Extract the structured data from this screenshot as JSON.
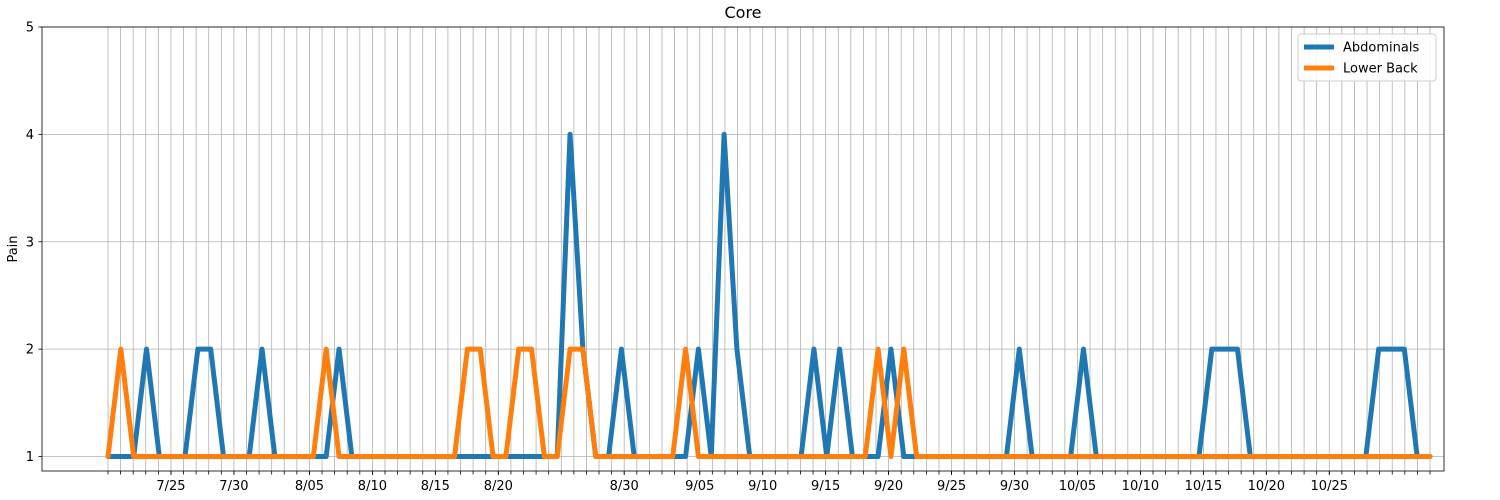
{
  "chart_data": {
    "type": "line",
    "title": "Core",
    "xlabel": "",
    "ylabel": "Pain",
    "ylim": [
      1,
      5
    ],
    "yticks": [
      1,
      2,
      3,
      4,
      5
    ],
    "x_start": "2021-07-20",
    "x_end": "2021-11-02",
    "x_labeled_ticks": [
      "7/25",
      "7/30",
      "8/05",
      "8/10",
      "8/15",
      "8/20",
      "8/30",
      "9/05",
      "9/10",
      "9/15",
      "9/20",
      "9/25",
      "9/30",
      "10/05",
      "10/10",
      "10/15",
      "10/20",
      "10/25"
    ],
    "x_labeled_tick_dates": [
      "2021-07-25",
      "2021-07-30",
      "2021-08-05",
      "2021-08-10",
      "2021-08-15",
      "2021-08-20",
      "2021-08-30",
      "2021-09-05",
      "2021-09-10",
      "2021-09-15",
      "2021-09-20",
      "2021-09-25",
      "2021-09-30",
      "2021-10-05",
      "2021-10-10",
      "2021-10-15",
      "2021-10-20",
      "2021-10-25"
    ],
    "grid": true,
    "legend_position": "top-right",
    "series": [
      {
        "name": "Abdominals",
        "color": "#1f77b4",
        "values": [
          1,
          1,
          1,
          2,
          1,
          1,
          1,
          2,
          2,
          1,
          1,
          1,
          2,
          1,
          1,
          1,
          1,
          1,
          2,
          1,
          1,
          1,
          1,
          1,
          1,
          1,
          1,
          1,
          1,
          1,
          1,
          1,
          1,
          1,
          1,
          1,
          4,
          2,
          1,
          1,
          2,
          1,
          1,
          1,
          1,
          1,
          2,
          1,
          4,
          2,
          1,
          1,
          1,
          1,
          1,
          2,
          1,
          2,
          1,
          1,
          1,
          2,
          1,
          1,
          1,
          1,
          1,
          1,
          1,
          1,
          1,
          2,
          1,
          1,
          1,
          1,
          2,
          1,
          1,
          1,
          1,
          1,
          1,
          1,
          1,
          1,
          2,
          2,
          2,
          1,
          1,
          1,
          1,
          1,
          1,
          1,
          1,
          1,
          1,
          2,
          2,
          2,
          1,
          1
        ]
      },
      {
        "name": "Lower Back",
        "color": "#ff7f0e",
        "values": [
          1,
          2,
          1,
          1,
          1,
          1,
          1,
          1,
          1,
          1,
          1,
          1,
          1,
          1,
          1,
          1,
          1,
          2,
          1,
          1,
          1,
          1,
          1,
          1,
          1,
          1,
          1,
          1,
          2,
          2,
          1,
          1,
          2,
          2,
          1,
          1,
          2,
          2,
          1,
          1,
          1,
          1,
          1,
          1,
          1,
          2,
          1,
          1,
          1,
          1,
          1,
          1,
          1,
          1,
          1,
          1,
          1,
          1,
          1,
          1,
          2,
          1,
          2,
          1,
          1,
          1,
          1,
          1,
          1,
          1,
          1,
          1,
          1,
          1,
          1,
          1,
          1,
          1,
          1,
          1,
          1,
          1,
          1,
          1,
          1,
          1,
          1,
          1,
          1,
          1,
          1,
          1,
          1,
          1,
          1,
          1,
          1,
          1,
          1,
          1,
          1,
          1,
          1,
          1
        ]
      }
    ]
  }
}
